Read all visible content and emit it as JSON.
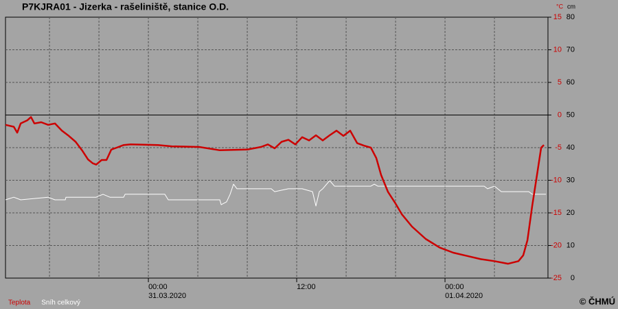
{
  "chart_data": {
    "type": "line",
    "title": "P7KJRA01 - Jizerka - rašeliniště, stanice O.D.",
    "y_unit": "°C",
    "y2_unit": "cm",
    "copyright": "© ČHMÚ",
    "xlim": [
      -11.56,
      32.33
    ],
    "xticks": [
      {
        "value": 0,
        "label": "00:00"
      },
      {
        "value": 12,
        "label": "12:00"
      },
      {
        "value": 24,
        "label": "00:00"
      }
    ],
    "x_date_labels": [
      {
        "value": 0,
        "label": "31.03.2020"
      },
      {
        "value": 24,
        "label": "01.04.2020"
      }
    ],
    "xgrid": [
      -8,
      -4,
      0,
      4,
      8,
      12,
      16,
      20,
      24,
      28
    ],
    "ylim": [
      -25,
      15
    ],
    "yticks": [
      15,
      10,
      5,
      0,
      -5,
      -10,
      -15,
      -20,
      -25
    ],
    "y2lim": [
      0,
      80
    ],
    "y2ticks": [
      80,
      70,
      60,
      50,
      40,
      30,
      20,
      10,
      0
    ],
    "grid": true,
    "series": [
      {
        "name": "Teplota",
        "color": "#cc0000",
        "x": [
          -11.56,
          -10.89,
          -10.61,
          -10.33,
          -9.78,
          -9.5,
          -9.22,
          -8.67,
          -8.11,
          -7.56,
          -7,
          -6.44,
          -5.89,
          -5.33,
          -4.89,
          -4.5,
          -4.22,
          -3.78,
          -3.39,
          -3,
          -2.56,
          -2,
          -1.44,
          0.78,
          1.89,
          4.11,
          5.78,
          8,
          9.11,
          9.67,
          10.22,
          10.78,
          11.33,
          11.89,
          12.44,
          13,
          13.56,
          14.11,
          14.67,
          15.22,
          15.78,
          16.33,
          16.89,
          17.44,
          18,
          18.44,
          18.83,
          19.39,
          19.94,
          20.5,
          21.33,
          22.44,
          23.56,
          24.67,
          25.78,
          26.89,
          28,
          29.11,
          29.94,
          30.33,
          30.67,
          31.06,
          31.44,
          31.78,
          32
        ],
        "values": [
          -1.5,
          -1.8,
          -2.7,
          -1.3,
          -0.8,
          -0.3,
          -1.3,
          -1.1,
          -1.5,
          -1.3,
          -2.4,
          -3.2,
          -4.1,
          -5.5,
          -6.8,
          -7.4,
          -7.6,
          -6.9,
          -6.9,
          -5.3,
          -5.0,
          -4.6,
          -4.5,
          -4.6,
          -4.8,
          -4.9,
          -5.4,
          -5.3,
          -4.9,
          -4.5,
          -5.1,
          -4.1,
          -3.8,
          -4.5,
          -3.4,
          -3.9,
          -3.1,
          -3.9,
          -3.1,
          -2.4,
          -3.2,
          -2.4,
          -4.3,
          -4.7,
          -5.0,
          -6.6,
          -9.2,
          -11.8,
          -13.4,
          -15.2,
          -17.1,
          -19.0,
          -20.3,
          -21.1,
          -21.6,
          -22.1,
          -22.4,
          -22.8,
          -22.4,
          -21.5,
          -19.2,
          -13.9,
          -9.2,
          -5.0,
          -4.6
        ]
      },
      {
        "name": "Sníh celkový",
        "color": "#ffffff",
        "axis": "y2",
        "x": [
          -11.56,
          -10.89,
          -10.33,
          -8.11,
          -7.56,
          -6.72,
          -6.67,
          -4.22,
          -3.67,
          -3.11,
          -2,
          -1.89,
          1.33,
          1.61,
          5.78,
          5.89,
          6.33,
          6.61,
          6.89,
          7.17,
          9.94,
          10.22,
          11.33,
          12.44,
          13.28,
          13.56,
          13.83,
          14.11,
          14.67,
          15.06,
          18,
          18.28,
          18.56,
          27.17,
          27.44,
          28,
          28.56,
          30.78,
          31.06,
          32.17
        ],
        "values": [
          24.0,
          24.8,
          24.0,
          24.8,
          24.0,
          24.0,
          24.8,
          24.8,
          25.7,
          24.8,
          24.8,
          25.7,
          25.7,
          24.0,
          24.0,
          22.5,
          23.4,
          25.7,
          28.8,
          27.4,
          27.4,
          26.5,
          27.4,
          27.4,
          26.5,
          22.1,
          26.5,
          27.4,
          29.9,
          28.2,
          28.2,
          28.8,
          28.2,
          28.2,
          27.4,
          28.2,
          26.5,
          26.5,
          25.7,
          25.7
        ]
      }
    ]
  }
}
